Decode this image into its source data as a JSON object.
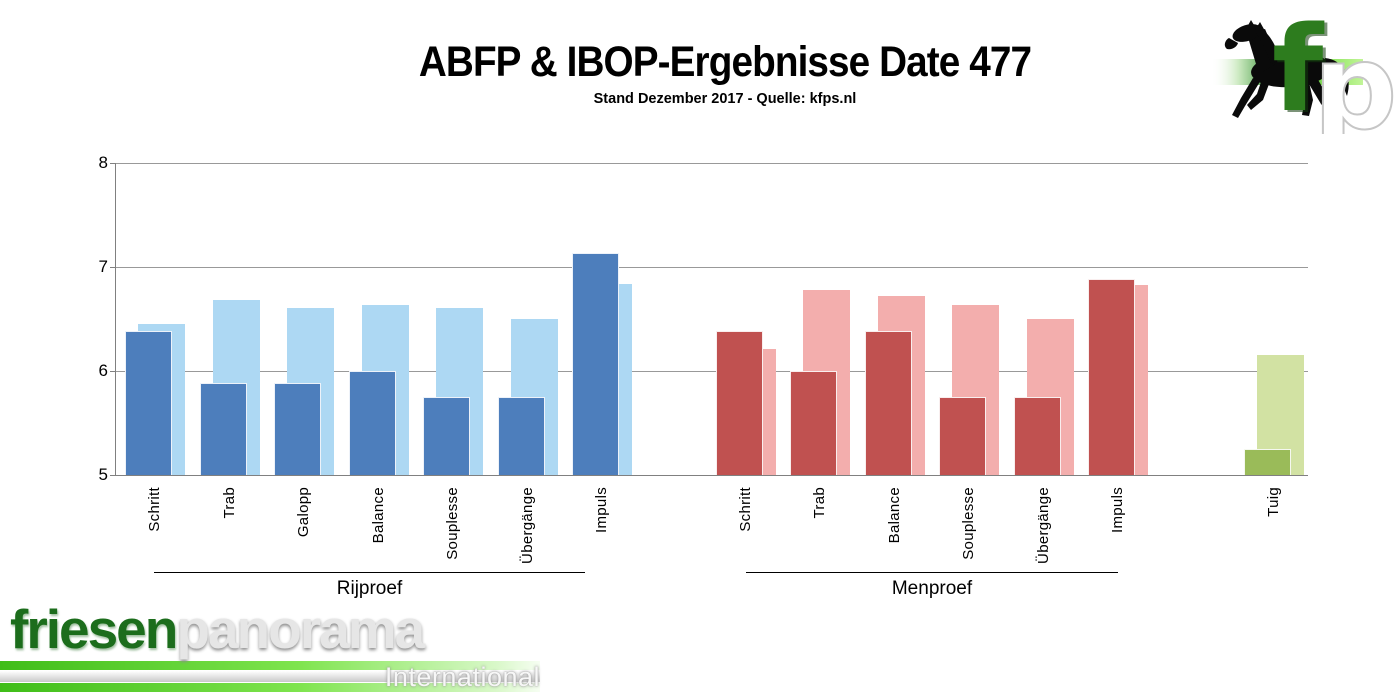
{
  "chart_data": {
    "type": "bar",
    "title": "ABFP & IBOP-Ergebnisse Date 477",
    "subtitle": "Stand Dezember 2017 - Quelle: kfps.nl",
    "ylim": [
      5,
      8
    ],
    "yticks": [
      5,
      6,
      7,
      8
    ],
    "grid": true,
    "legend": "none",
    "bar_style": "overlapped pairs: dark series in front, light series behind offset right",
    "groups": [
      {
        "label": "Rijproef",
        "categories": [
          "Schritt",
          "Trab",
          "Galopp",
          "Balance",
          "Souplesse",
          "Übergänge",
          "Impuls"
        ],
        "series": [
          {
            "name": "dark-front",
            "color": "#4d7ebc",
            "values": [
              6.38,
              5.88,
              5.88,
              6.0,
              5.75,
              5.75,
              7.13
            ]
          },
          {
            "name": "light-back",
            "color": "#add8f3",
            "values": [
              6.45,
              6.68,
              6.61,
              6.63,
              6.61,
              6.5,
              6.84
            ]
          }
        ]
      },
      {
        "label": "Menproef",
        "categories": [
          "Schritt",
          "Trab",
          "Balance",
          "Souplesse",
          "Übergänge",
          "Impuls"
        ],
        "series": [
          {
            "name": "dark-front",
            "color": "#c05150",
            "values": [
              6.38,
              6.0,
              6.38,
              5.75,
              5.75,
              6.88
            ]
          },
          {
            "name": "light-back",
            "color": "#f3aead",
            "values": [
              6.21,
              6.78,
              6.72,
              6.63,
              6.5,
              6.83
            ]
          }
        ]
      },
      {
        "label": "",
        "categories": [
          "Tuig"
        ],
        "series": [
          {
            "name": "dark-front",
            "color": "#9abb59",
            "values": [
              5.25
            ]
          },
          {
            "name": "light-back",
            "color": "#d2e2a3",
            "values": [
              6.15
            ]
          }
        ]
      }
    ]
  },
  "branding": {
    "fp_logo": {
      "letter_f": "f",
      "letter_p": "p",
      "icon": "horse-icon"
    },
    "footer": {
      "name_green": "friesen",
      "name_silver": "panorama",
      "tagline": "International"
    }
  }
}
